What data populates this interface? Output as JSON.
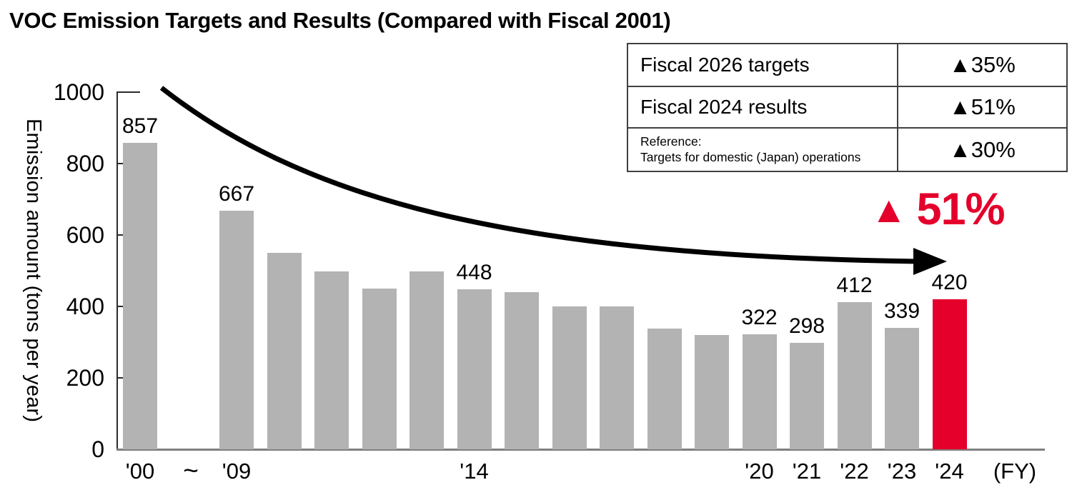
{
  "title": "VOC Emission Targets and Results (Compared with Fiscal 2001)",
  "summary_table": {
    "rows": [
      {
        "label": "Fiscal 2026 targets",
        "value": "▲35%"
      },
      {
        "label": "Fiscal 2024 results",
        "value": "▲51%"
      },
      {
        "label": "Reference:",
        "label2": "Targets for domestic (Japan) operations",
        "value": "▲30%"
      }
    ]
  },
  "highlight": {
    "icon": "▲",
    "value": "51%"
  },
  "colors": {
    "accent_red": "#e4002b",
    "bar_gray": "#b3b3b3",
    "axis_gray": "#7f7f7f",
    "text_black": "#000000"
  },
  "chart_data": {
    "type": "bar",
    "title": "VOC Emission Targets and Results (Compared with Fiscal 2001)",
    "ylabel": "Emission amount (tons per year)",
    "ylim": [
      0,
      1000
    ],
    "y_axis_ticks": [
      0,
      200,
      400,
      600,
      800,
      1000
    ],
    "x_axis_unit": "(FY)",
    "x_break_symbol": "~",
    "legend": "none",
    "grid": "off",
    "bars": [
      {
        "tick": "'00",
        "value": 857,
        "label": "857"
      },
      {
        "tick": "'09",
        "value": 667,
        "label": "667"
      },
      {
        "value": 550
      },
      {
        "value": 498
      },
      {
        "value": 450
      },
      {
        "value": 498
      },
      {
        "tick": "'14",
        "value": 448,
        "label": "448"
      },
      {
        "value": 440
      },
      {
        "value": 400
      },
      {
        "value": 400
      },
      {
        "value": 338
      },
      {
        "value": 320
      },
      {
        "tick": "'20",
        "value": 322,
        "label": "322"
      },
      {
        "tick": "'21",
        "value": 298,
        "label": "298"
      },
      {
        "tick": "'22",
        "value": 412,
        "label": "412"
      },
      {
        "tick": "'23",
        "value": 339,
        "label": "339"
      },
      {
        "tick": "'24",
        "value": 420,
        "label": "420",
        "highlight": true
      }
    ]
  }
}
